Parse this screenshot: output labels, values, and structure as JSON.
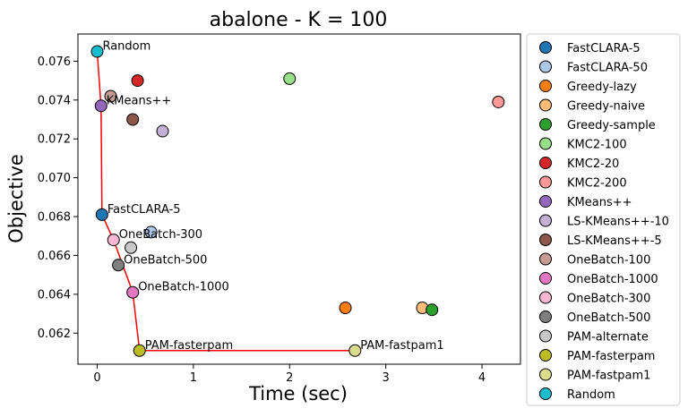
{
  "chart_data": {
    "type": "scatter",
    "title": "abalone - K = 100",
    "xlabel": "Time (sec)",
    "ylabel": "Objective",
    "xlim": [
      -0.2,
      4.4
    ],
    "ylim": [
      0.0604,
      0.0774
    ],
    "xticks": [
      0,
      1,
      2,
      3,
      4
    ],
    "yticks": [
      0.062,
      0.064,
      0.066,
      0.068,
      0.07,
      0.072,
      0.074,
      0.076
    ],
    "grid": false,
    "legend_position": "outside-right",
    "frontier_color": "#ff0000",
    "frontier_x": [
      0.0,
      0.04,
      0.05,
      0.17,
      0.37,
      0.44,
      2.68
    ],
    "frontier_y": [
      0.0765,
      0.0737,
      0.0681,
      0.0668,
      0.0641,
      0.0611,
      0.0611
    ],
    "series": [
      {
        "name": "FastCLARA-5",
        "color": "#1f77b4",
        "points": [
          [
            0.05,
            0.0681
          ]
        ],
        "label": "FastCLARA-5"
      },
      {
        "name": "FastCLARA-50",
        "color": "#aec7e8",
        "points": [
          [
            0.56,
            0.0672
          ]
        ],
        "label": ""
      },
      {
        "name": "Greedy-lazy",
        "color": "#ff7f0e",
        "points": [
          [
            2.58,
            0.0633
          ]
        ],
        "label": ""
      },
      {
        "name": "Greedy-naive",
        "color": "#ffbb78",
        "points": [
          [
            3.38,
            0.0633
          ]
        ],
        "label": ""
      },
      {
        "name": "Greedy-sample",
        "color": "#2ca02c",
        "points": [
          [
            3.48,
            0.0632
          ]
        ],
        "label": ""
      },
      {
        "name": "KMC2-100",
        "color": "#98df8a",
        "points": [
          [
            2.0,
            0.0751
          ]
        ],
        "label": ""
      },
      {
        "name": "KMC2-20",
        "color": "#d62728",
        "points": [
          [
            0.42,
            0.075
          ]
        ],
        "label": ""
      },
      {
        "name": "KMC2-200",
        "color": "#ff9896",
        "points": [
          [
            4.17,
            0.0739
          ]
        ],
        "label": ""
      },
      {
        "name": "KMeans++",
        "color": "#9467bd",
        "points": [
          [
            0.04,
            0.0737
          ]
        ],
        "label": "KMeans++"
      },
      {
        "name": "LS-KMeans++-10",
        "color": "#c5b0d5",
        "points": [
          [
            0.68,
            0.0724
          ]
        ],
        "label": ""
      },
      {
        "name": "LS-KMeans++-5",
        "color": "#8c564b",
        "points": [
          [
            0.37,
            0.073
          ]
        ],
        "label": ""
      },
      {
        "name": "OneBatch-100",
        "color": "#c49c94",
        "points": [
          [
            0.14,
            0.0742
          ]
        ],
        "label": ""
      },
      {
        "name": "OneBatch-1000",
        "color": "#e377c2",
        "points": [
          [
            0.37,
            0.0641
          ]
        ],
        "label": "OneBatch-1000"
      },
      {
        "name": "OneBatch-300",
        "color": "#f7b6d2",
        "points": [
          [
            0.17,
            0.0668
          ]
        ],
        "label": "OneBatch-300"
      },
      {
        "name": "OneBatch-500",
        "color": "#7f7f7f",
        "points": [
          [
            0.22,
            0.0655
          ]
        ],
        "label": "OneBatch-500"
      },
      {
        "name": "PAM-alternate",
        "color": "#c7c7c7",
        "points": [
          [
            0.35,
            0.0664
          ]
        ],
        "label": ""
      },
      {
        "name": "PAM-fasterpam",
        "color": "#bcbd22",
        "points": [
          [
            0.44,
            0.0611
          ]
        ],
        "label": "PAM-fasterpam"
      },
      {
        "name": "PAM-fastpam1",
        "color": "#dbdb8d",
        "points": [
          [
            2.68,
            0.0611
          ]
        ],
        "label": "PAM-fastpam1"
      },
      {
        "name": "Random",
        "color": "#17becf",
        "points": [
          [
            0.0,
            0.0765
          ]
        ],
        "label": "Random"
      }
    ]
  }
}
